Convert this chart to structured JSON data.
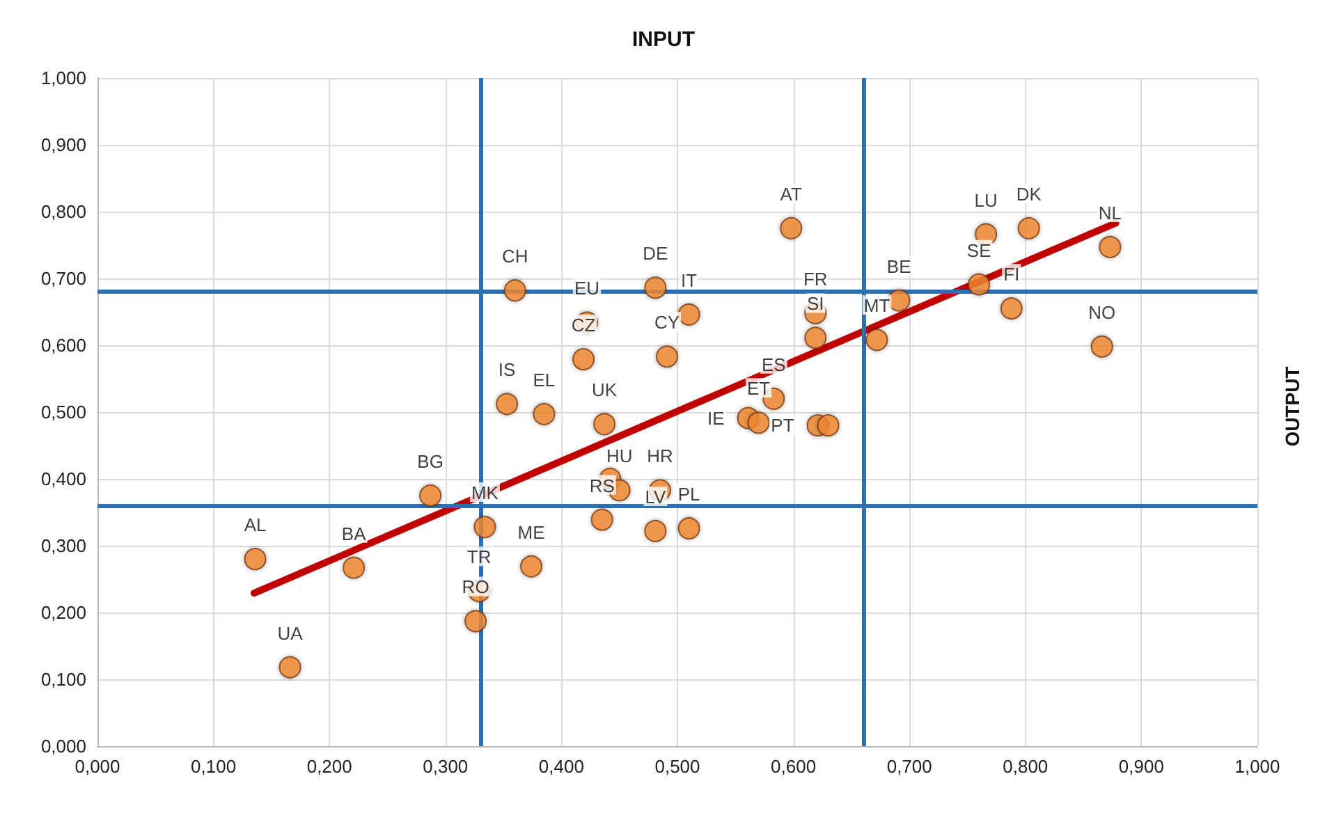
{
  "chart_data": {
    "type": "scatter",
    "title": "INPUT",
    "ylabel": "OUTPUT",
    "marker": "circle",
    "grid": true,
    "xlim": [
      0,
      1
    ],
    "ylim": [
      0,
      1
    ],
    "xticks": [
      {
        "value": 0,
        "label": "0,000"
      },
      {
        "value": 0.1,
        "label": "0,100"
      },
      {
        "value": 0.2,
        "label": "0,200"
      },
      {
        "value": 0.3,
        "label": "0,300"
      },
      {
        "value": 0.4,
        "label": "0,400"
      },
      {
        "value": 0.5,
        "label": "0,500"
      },
      {
        "value": 0.6,
        "label": "0,600"
      },
      {
        "value": 0.7,
        "label": "0,700"
      },
      {
        "value": 0.8,
        "label": "0,800"
      },
      {
        "value": 0.9,
        "label": "0,900"
      },
      {
        "value": 1,
        "label": "1,000"
      }
    ],
    "yticks": [
      {
        "value": 0,
        "label": "0,000"
      },
      {
        "value": 0.1,
        "label": "0,100"
      },
      {
        "value": 0.2,
        "label": "0,200"
      },
      {
        "value": 0.3,
        "label": "0,300"
      },
      {
        "value": 0.4,
        "label": "0,400"
      },
      {
        "value": 0.5,
        "label": "0,500"
      },
      {
        "value": 0.6,
        "label": "0,600"
      },
      {
        "value": 0.7,
        "label": "0,700"
      },
      {
        "value": 0.8,
        "label": "0,800"
      },
      {
        "value": 0.9,
        "label": "0,900"
      },
      {
        "value": 1,
        "label": "1,000"
      }
    ],
    "ref_lines": [
      {
        "axis": "x",
        "value": 0.33,
        "color": "#2e6fb0"
      },
      {
        "axis": "x",
        "value": 0.657,
        "color": "#2e6fb0"
      },
      {
        "axis": "y",
        "value": 0.357,
        "color": "#2e6fb0"
      },
      {
        "axis": "y",
        "value": 0.68,
        "color": "#2e6fb0"
      }
    ],
    "series": [
      {
        "color": "#f28a30",
        "x": [
          0.136,
          0.166,
          0.221,
          0.287,
          0.334,
          0.329,
          0.326,
          0.374,
          0.36,
          0.353,
          0.385,
          0.422,
          0.419,
          0.437,
          0.442,
          0.45,
          0.435,
          0.481,
          0.51,
          0.491,
          0.598,
          0.619,
          0.619,
          0.583,
          0.561,
          0.57,
          0.621,
          0.63,
          0.672,
          0.691,
          0.76,
          0.766,
          0.803,
          0.788,
          0.873,
          0.866,
          0.485,
          0.481,
          0.51
        ],
        "values": [
          0.28,
          0.118,
          0.267,
          0.375,
          0.328,
          0.232,
          0.187,
          0.269,
          0.682,
          0.512,
          0.497,
          0.634,
          0.579,
          0.482,
          0.4,
          0.383,
          0.339,
          0.686,
          0.646,
          0.583,
          0.775,
          0.648,
          0.611,
          0.52,
          0.491,
          0.484,
          0.48,
          0.48,
          0.608,
          0.667,
          0.691,
          0.766,
          0.775,
          0.655,
          0.747,
          0.598,
          0.383,
          0.322,
          0.326
        ],
        "value_labels": [
          "AL",
          "UA",
          "BA",
          "BG",
          "MK",
          "TR",
          "RO",
          "ME",
          "CH",
          "IS",
          "EL",
          "EU",
          "CZ",
          "UK",
          null,
          "HU",
          "RS",
          "DE",
          "IT",
          "CY",
          "AT",
          "FR",
          "SI",
          "ES",
          "IE",
          "ET",
          "PT",
          null,
          "MT",
          "BE",
          "SE",
          "LU",
          "DK",
          "FI",
          "NL",
          "NO",
          "HR",
          "LV",
          "PL"
        ]
      },
      {
        "type": "line",
        "marker": "none",
        "color": "#c00000",
        "x": [
          0.135,
          0.878
        ],
        "values": [
          0.229,
          0.783
        ]
      }
    ]
  }
}
